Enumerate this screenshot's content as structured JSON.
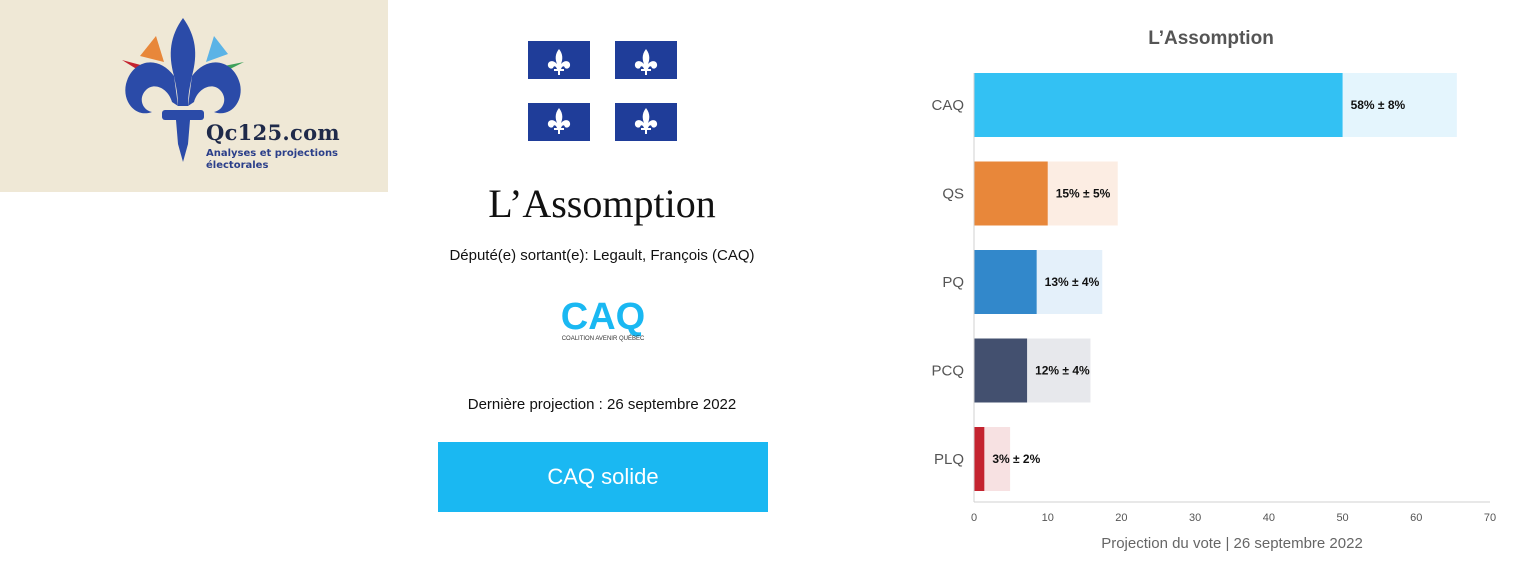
{
  "logo": {
    "name": "Qc125.com",
    "tagline": "Analyses et projections électorales"
  },
  "riding": {
    "title": "L’Assomption",
    "incumbent": "Député(e) sortant(e): Legault, François (CAQ)",
    "party_logo_text": "CAQ",
    "party_logo_subtext": "COALITION AVENIR QUÉBEC",
    "last_projection": "Dernière projection : 26 septembre 2022",
    "status": "CAQ solide"
  },
  "colors": {
    "status_box": "#1ab8f2",
    "logo_bg": "#efe8d6",
    "flag_blue": "#1f3d99"
  },
  "chart_data": {
    "type": "bar",
    "orientation": "horizontal",
    "title": "L’Assomption",
    "xlabel": "Projection du vote | 26 septembre 2022",
    "xlim": [
      0,
      70
    ],
    "xticks": [
      0,
      10,
      20,
      30,
      40,
      50,
      60,
      70
    ],
    "categories": [
      "CAQ",
      "QS",
      "PQ",
      "PCQ",
      "PLQ"
    ],
    "values": [
      50,
      10,
      8.5,
      7.2,
      1.4
    ],
    "error_upper": [
      65.5,
      19.5,
      17.4,
      15.8,
      4.9
    ],
    "labels": [
      "58%  ± 8%",
      "15%  ± 5%",
      "13%  ± 4%",
      "12%  ± 4%",
      "3%  ± 2%"
    ],
    "bar_colors": [
      "#33c1f3",
      "#e8873a",
      "#3288cb",
      "#43506f",
      "#c4232f"
    ],
    "range_colors": [
      "#e4f5fd",
      "#fcede3",
      "#e4f0fa",
      "#e7e8ec",
      "#f7e1e2"
    ]
  }
}
